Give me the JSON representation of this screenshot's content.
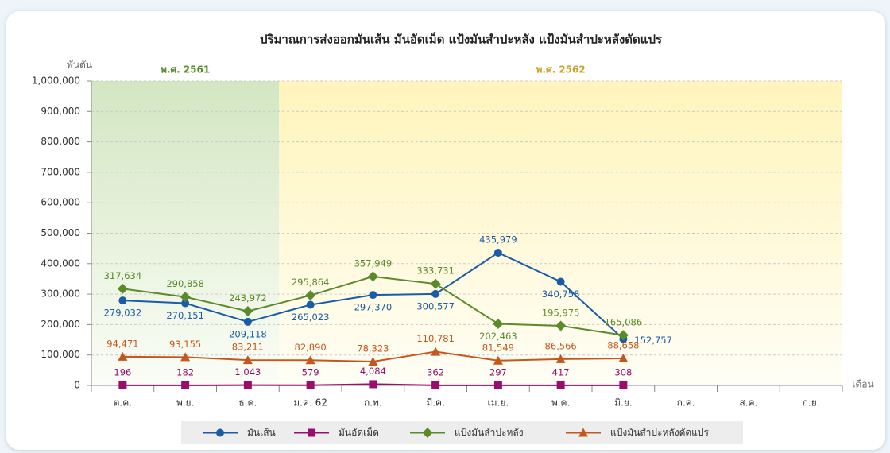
{
  "chart_data": {
    "type": "line",
    "title": "ปริมาณการส่งออกมันเส้น มันอัดเม็ด แป้งมันสำปะหลัง แป้งมันสำปะหลังดัดแปร",
    "y_label": "พันตัน",
    "x_label": "เดือน",
    "periods": [
      "พ.ศ. 2561",
      "พ.ศ. 2562"
    ],
    "categories": [
      "ต.ค.",
      "พ.ย.",
      "ธ.ค.",
      "ม.ค. 62",
      "ก.พ.",
      "มี.ค.",
      "เม.ย.",
      "พ.ค.",
      "มิ.ย.",
      "ก.ค.",
      "ส.ค.",
      "ก.ย."
    ],
    "ylim": [
      0,
      1000000
    ],
    "yticks": [
      0,
      {
        "value": 100000,
        "label": "100,000"
      },
      {
        "value": 200000,
        "label": "200,000"
      },
      {
        "value": 300000,
        "label": "300,000"
      },
      {
        "value": 400000,
        "label": "400,000"
      },
      {
        "value": 500000,
        "label": "500,000"
      },
      {
        "value": 600000,
        "label": "600,000"
      },
      {
        "value": 700000,
        "label": "700,000"
      },
      {
        "value": 800000,
        "label": "800,000"
      },
      {
        "value": 900000,
        "label": "900,000"
      },
      {
        "value": 1000000,
        "label": "1,000,000"
      }
    ],
    "grid": true,
    "legend": "bottom",
    "series": [
      {
        "name": "มันเส้น",
        "color": "#1a5ca6",
        "marker": "circle",
        "values": [
          279032,
          270151,
          209118,
          265023,
          297370,
          300577,
          435979,
          340758,
          152757,
          null,
          null,
          null
        ],
        "value_labels": [
          "279,032",
          "270,151",
          "209,118",
          "265,023",
          "297,370",
          "300,577",
          "435,979",
          "340,758",
          "152,757",
          null,
          null,
          null
        ]
      },
      {
        "name": "มันอัดเม็ด",
        "color": "#9b0d6c",
        "marker": "square",
        "values": [
          196,
          182,
          1043,
          579,
          4084,
          362,
          297,
          417,
          308,
          null,
          null,
          null
        ],
        "value_labels": [
          "196",
          "182",
          "1,043",
          "579",
          "4,084",
          "362",
          "297",
          "417",
          "308",
          null,
          null,
          null
        ]
      },
      {
        "name": "แป้งมันสำปะหลัง",
        "color": "#5b8a2b",
        "marker": "diamond",
        "values": [
          317634,
          290858,
          243972,
          295864,
          357949,
          333731,
          202463,
          195975,
          165086,
          null,
          null,
          null
        ],
        "value_labels": [
          "317,634",
          "290,858",
          "243,972",
          "295,864",
          "357,949",
          "333,731",
          "202,463",
          "195,975",
          "165,086",
          null,
          null,
          null
        ]
      },
      {
        "name": "แป้งมันสำปะหลังดัดแปร",
        "color": "#c5561d",
        "marker": "triangle",
        "values": [
          94471,
          93155,
          83211,
          82890,
          78323,
          110781,
          81549,
          86566,
          88658,
          null,
          null,
          null
        ],
        "value_labels": [
          "94,471",
          "93,155",
          "83,211",
          "82,890",
          "78,323",
          "110,781",
          "81,549",
          "86,566",
          "88,658",
          null,
          null,
          null
        ]
      }
    ]
  }
}
